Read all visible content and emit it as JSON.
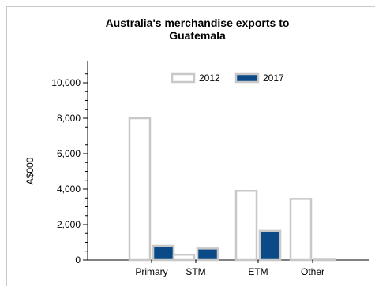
{
  "chart_data": {
    "type": "bar",
    "title": "Australia's merchandise exports to Guatemala",
    "xlabel": "",
    "ylabel": "A$000",
    "ylim": [
      0,
      11000
    ],
    "yticks": [
      0,
      2000,
      4000,
      6000,
      8000,
      10000
    ],
    "ytick_labels": [
      "0",
      "2,000",
      "4,000",
      "6,000",
      "8,000",
      "10,000"
    ],
    "categories": [
      "Primary",
      "STM",
      "ETM",
      "Other"
    ],
    "series": [
      {
        "name": "2012",
        "values": [
          8000,
          300,
          3900,
          3450
        ],
        "fill": "#ffffff",
        "stroke": "#c8c8c8"
      },
      {
        "name": "2017",
        "values": [
          800,
          650,
          1650,
          20
        ],
        "fill": "#0b4a86",
        "stroke": "#c8c8c8"
      }
    ],
    "grid": false,
    "legend_position": "top-center"
  }
}
